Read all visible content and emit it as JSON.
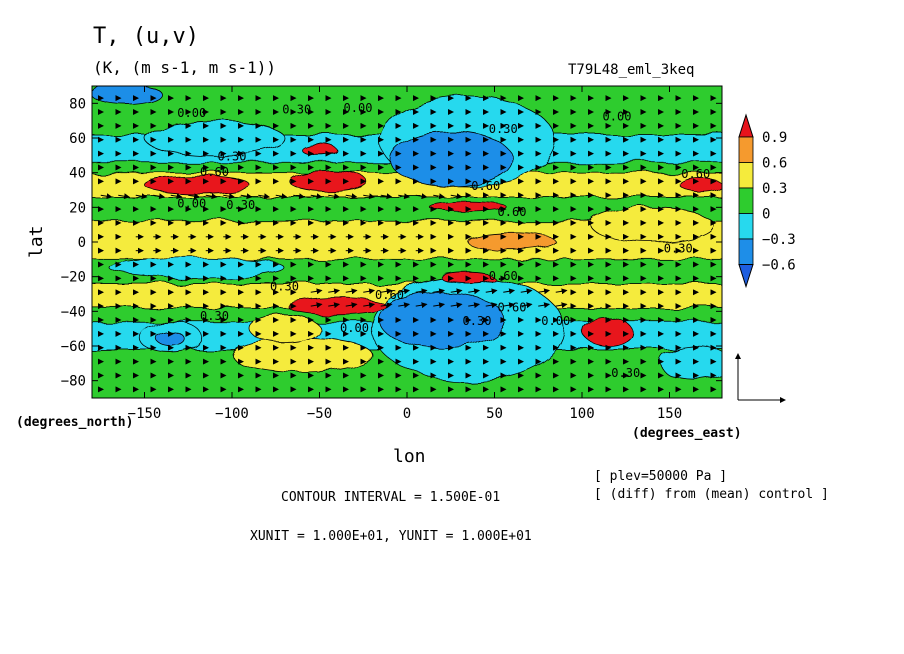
{
  "chart_data": {
    "type": "heatmap",
    "title": "T, (u,v)",
    "subtitle": "(K, (m s-1, m s-1))",
    "run_label": "T79L48_eml_3keq",
    "xlabel": "lon",
    "ylabel": "lat",
    "x_units": "(degrees_east)",
    "y_units": "(degrees_north)",
    "xlim": [
      -180,
      180
    ],
    "ylim": [
      -90,
      90
    ],
    "x_ticks": [
      -150,
      -100,
      -50,
      0,
      50,
      100,
      150
    ],
    "y_ticks": [
      80,
      60,
      40,
      20,
      0,
      -20,
      -40,
      -60,
      -80
    ],
    "x_tick_labels": [
      "−150",
      "−100",
      "−50",
      "0",
      "50",
      "100",
      "150"
    ],
    "y_tick_labels": [
      "80",
      "60",
      "40",
      "20",
      "0",
      "−20",
      "−40",
      "−60",
      "−80"
    ],
    "colorbar": {
      "levels": [
        0.9,
        0.6,
        0.3,
        0,
        -0.3,
        -0.6
      ],
      "labels": [
        "0.9",
        "0.6",
        "0.3",
        "0",
        "−0.3",
        "−0.6"
      ],
      "colors": [
        "#e8141c",
        "#f59a2e",
        "#f5eb3c",
        "#2ecc2e",
        "#27d9ee",
        "#1e8ee8",
        "#1e5ee0"
      ]
    },
    "background_color": "#2ecc2e",
    "features": [
      {
        "kind": "band",
        "lat": [
          26,
          40
        ],
        "level": 0.3
      },
      {
        "kind": "band",
        "lat": [
          -38,
          -24
        ],
        "level": 0.3
      },
      {
        "kind": "band",
        "lat": [
          -10,
          12
        ],
        "level": 0.3
      },
      {
        "kind": "band",
        "lat": [
          46,
          62
        ],
        "level": -0.3
      },
      {
        "kind": "band",
        "lat": [
          -62,
          -46
        ],
        "level": -0.3
      },
      {
        "kind": "blob",
        "lon": 35,
        "lat": 58,
        "rlon": 50,
        "rlat": 26,
        "level": -0.3
      },
      {
        "kind": "blob",
        "lon": 25,
        "lat": 48,
        "rlon": 35,
        "rlat": 16,
        "level": -0.6
      },
      {
        "kind": "blob",
        "lon": 35,
        "lat": -50,
        "rlon": 55,
        "rlat": 30,
        "level": -0.3
      },
      {
        "kind": "blob",
        "lon": 20,
        "lat": -45,
        "rlon": 36,
        "rlat": 16,
        "level": -0.6
      },
      {
        "kind": "blob",
        "lon": -120,
        "lat": 33,
        "rlon": 30,
        "rlat": 5,
        "level": 0.9
      },
      {
        "kind": "blob",
        "lon": -45,
        "lat": 35,
        "rlon": 22,
        "rlat": 6,
        "level": 0.9
      },
      {
        "kind": "blob",
        "lon": -50,
        "lat": 53,
        "rlon": 10,
        "rlat": 3,
        "level": 0.9
      },
      {
        "kind": "blob",
        "lon": 35,
        "lat": 20,
        "rlon": 22,
        "rlat": 3,
        "level": 0.9
      },
      {
        "kind": "blob",
        "lon": -40,
        "lat": -37,
        "rlon": 28,
        "rlat": 5,
        "level": 0.9
      },
      {
        "kind": "blob",
        "lon": 35,
        "lat": -21,
        "rlon": 15,
        "rlat": 3,
        "level": 0.9
      },
      {
        "kind": "blob",
        "lon": 115,
        "lat": -52,
        "rlon": 14,
        "rlat": 8,
        "level": 0.9
      },
      {
        "kind": "blob",
        "lon": 168,
        "lat": 33,
        "rlon": 12,
        "rlat": 4,
        "level": 0.9
      },
      {
        "kind": "blob",
        "lon": -135,
        "lat": -55,
        "rlon": 18,
        "rlat": 9,
        "level": -0.3
      },
      {
        "kind": "blob",
        "lon": -135,
        "lat": -56,
        "rlon": 8,
        "rlat": 4,
        "level": -0.6
      },
      {
        "kind": "blob",
        "lon": -110,
        "lat": 60,
        "rlon": 40,
        "rlat": 10,
        "level": -0.3
      },
      {
        "kind": "blob",
        "lon": -120,
        "lat": -15,
        "rlon": 50,
        "rlat": 6,
        "level": -0.3
      },
      {
        "kind": "blob",
        "lon": 165,
        "lat": -70,
        "rlon": 20,
        "rlat": 10,
        "level": -0.3
      },
      {
        "kind": "blob",
        "lon": -160,
        "lat": 85,
        "rlon": 20,
        "rlat": 6,
        "level": -0.6
      },
      {
        "kind": "blob",
        "lon": 140,
        "lat": 10,
        "rlon": 35,
        "rlat": 10,
        "level": 0.3
      },
      {
        "kind": "blob",
        "lon": -60,
        "lat": -65,
        "rlon": 40,
        "rlat": 10,
        "level": 0.3
      },
      {
        "kind": "blob",
        "lon": 60,
        "lat": 0,
        "rlon": 25,
        "rlat": 5,
        "level": 0.6
      },
      {
        "kind": "blob",
        "lon": -70,
        "lat": -50,
        "rlon": 20,
        "rlat": 8,
        "level": 0.3
      }
    ],
    "contour_labels": [
      {
        "text": "0.00",
        "lon": -123,
        "lat": 72
      },
      {
        "text": "0.30",
        "lon": -63,
        "lat": 74
      },
      {
        "text": "0.00",
        "lon": -28,
        "lat": 75
      },
      {
        "text": "0.30",
        "lon": 55,
        "lat": 63
      },
      {
        "text": "0.00",
        "lon": 120,
        "lat": 70
      },
      {
        "text": "0.30",
        "lon": -100,
        "lat": 47
      },
      {
        "text": "0.60",
        "lon": -110,
        "lat": 38
      },
      {
        "text": "0.30",
        "lon": -95,
        "lat": 19
      },
      {
        "text": "0.00",
        "lon": -123,
        "lat": 20
      },
      {
        "text": "0.60",
        "lon": 165,
        "lat": 37
      },
      {
        "text": "0.60",
        "lon": 60,
        "lat": 15
      },
      {
        "text": "0.60",
        "lon": 45,
        "lat": 30
      },
      {
        "text": "0.30",
        "lon": 155,
        "lat": -6
      },
      {
        "text": "0.30",
        "lon": -70,
        "lat": -28
      },
      {
        "text": "0.60",
        "lon": -10,
        "lat": -33
      },
      {
        "text": "0.00",
        "lon": -30,
        "lat": -52
      },
      {
        "text": "0.30",
        "lon": 40,
        "lat": -48
      },
      {
        "text": "0.60",
        "lon": 60,
        "lat": -40
      },
      {
        "text": "0.00",
        "lon": 85,
        "lat": -48
      },
      {
        "text": "0.60",
        "lon": 55,
        "lat": -22
      },
      {
        "text": "0.30",
        "lon": -110,
        "lat": -45
      },
      {
        "text": "0.30",
        "lon": 125,
        "lat": -78
      }
    ],
    "wind_jets": [
      {
        "lat": 28,
        "lon": [
          -180,
          30
        ],
        "u": 12,
        "v": -2
      },
      {
        "lat": -32,
        "lon": [
          -60,
          90
        ],
        "u": 12,
        "v": 2
      },
      {
        "lat": 0,
        "lon": [
          -160,
          10
        ],
        "u": 8,
        "v": 0
      }
    ],
    "reference_vector": {
      "u": 10,
      "v": 10
    }
  },
  "annotations": {
    "plev": "[ plev=50000 Pa ]",
    "diff": "[ (diff) from (mean) control ]",
    "contour_interval": "CONTOUR INTERVAL = 1.500E-01",
    "units": "XUNIT = 1.000E+01, YUNIT = 1.000E+01"
  }
}
